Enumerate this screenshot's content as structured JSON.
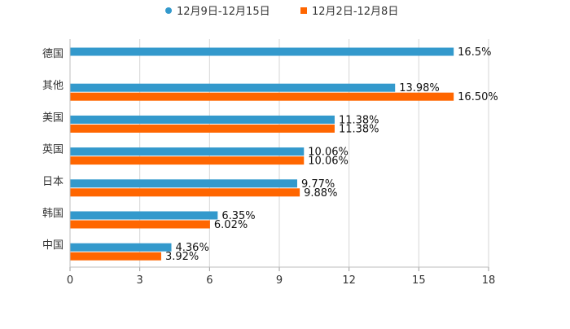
{
  "chart_data": {
    "type": "bar",
    "orientation": "horizontal",
    "title": "",
    "xlabel": "",
    "ylabel": "",
    "xlim": [
      0,
      18
    ],
    "xticks": [
      "0",
      "3",
      "6",
      "9",
      "12",
      "15",
      "18"
    ],
    "grid": true,
    "legend_position": "top-center",
    "categories": [
      "德国",
      "其他",
      "美国",
      "英国",
      "日本",
      "韩国",
      "中国"
    ],
    "series": [
      {
        "name": "12月9日-12月15日",
        "color": "#3399cc",
        "values": [
          16.5,
          13.98,
          11.38,
          10.06,
          9.77,
          6.35,
          4.36
        ],
        "labels": [
          "16.5%",
          "13.98%",
          "11.38%",
          "10.06%",
          "9.77%",
          "6.35%",
          "4.36%"
        ]
      },
      {
        "name": "12月2日-12月8日",
        "color": "#ff6600",
        "values": [
          null,
          16.5,
          11.38,
          10.06,
          9.88,
          6.02,
          3.92
        ],
        "labels": [
          "",
          "16.50%",
          "11.38%",
          "10.06%",
          "9.88%",
          "6.02%",
          "3.92%"
        ]
      }
    ]
  }
}
